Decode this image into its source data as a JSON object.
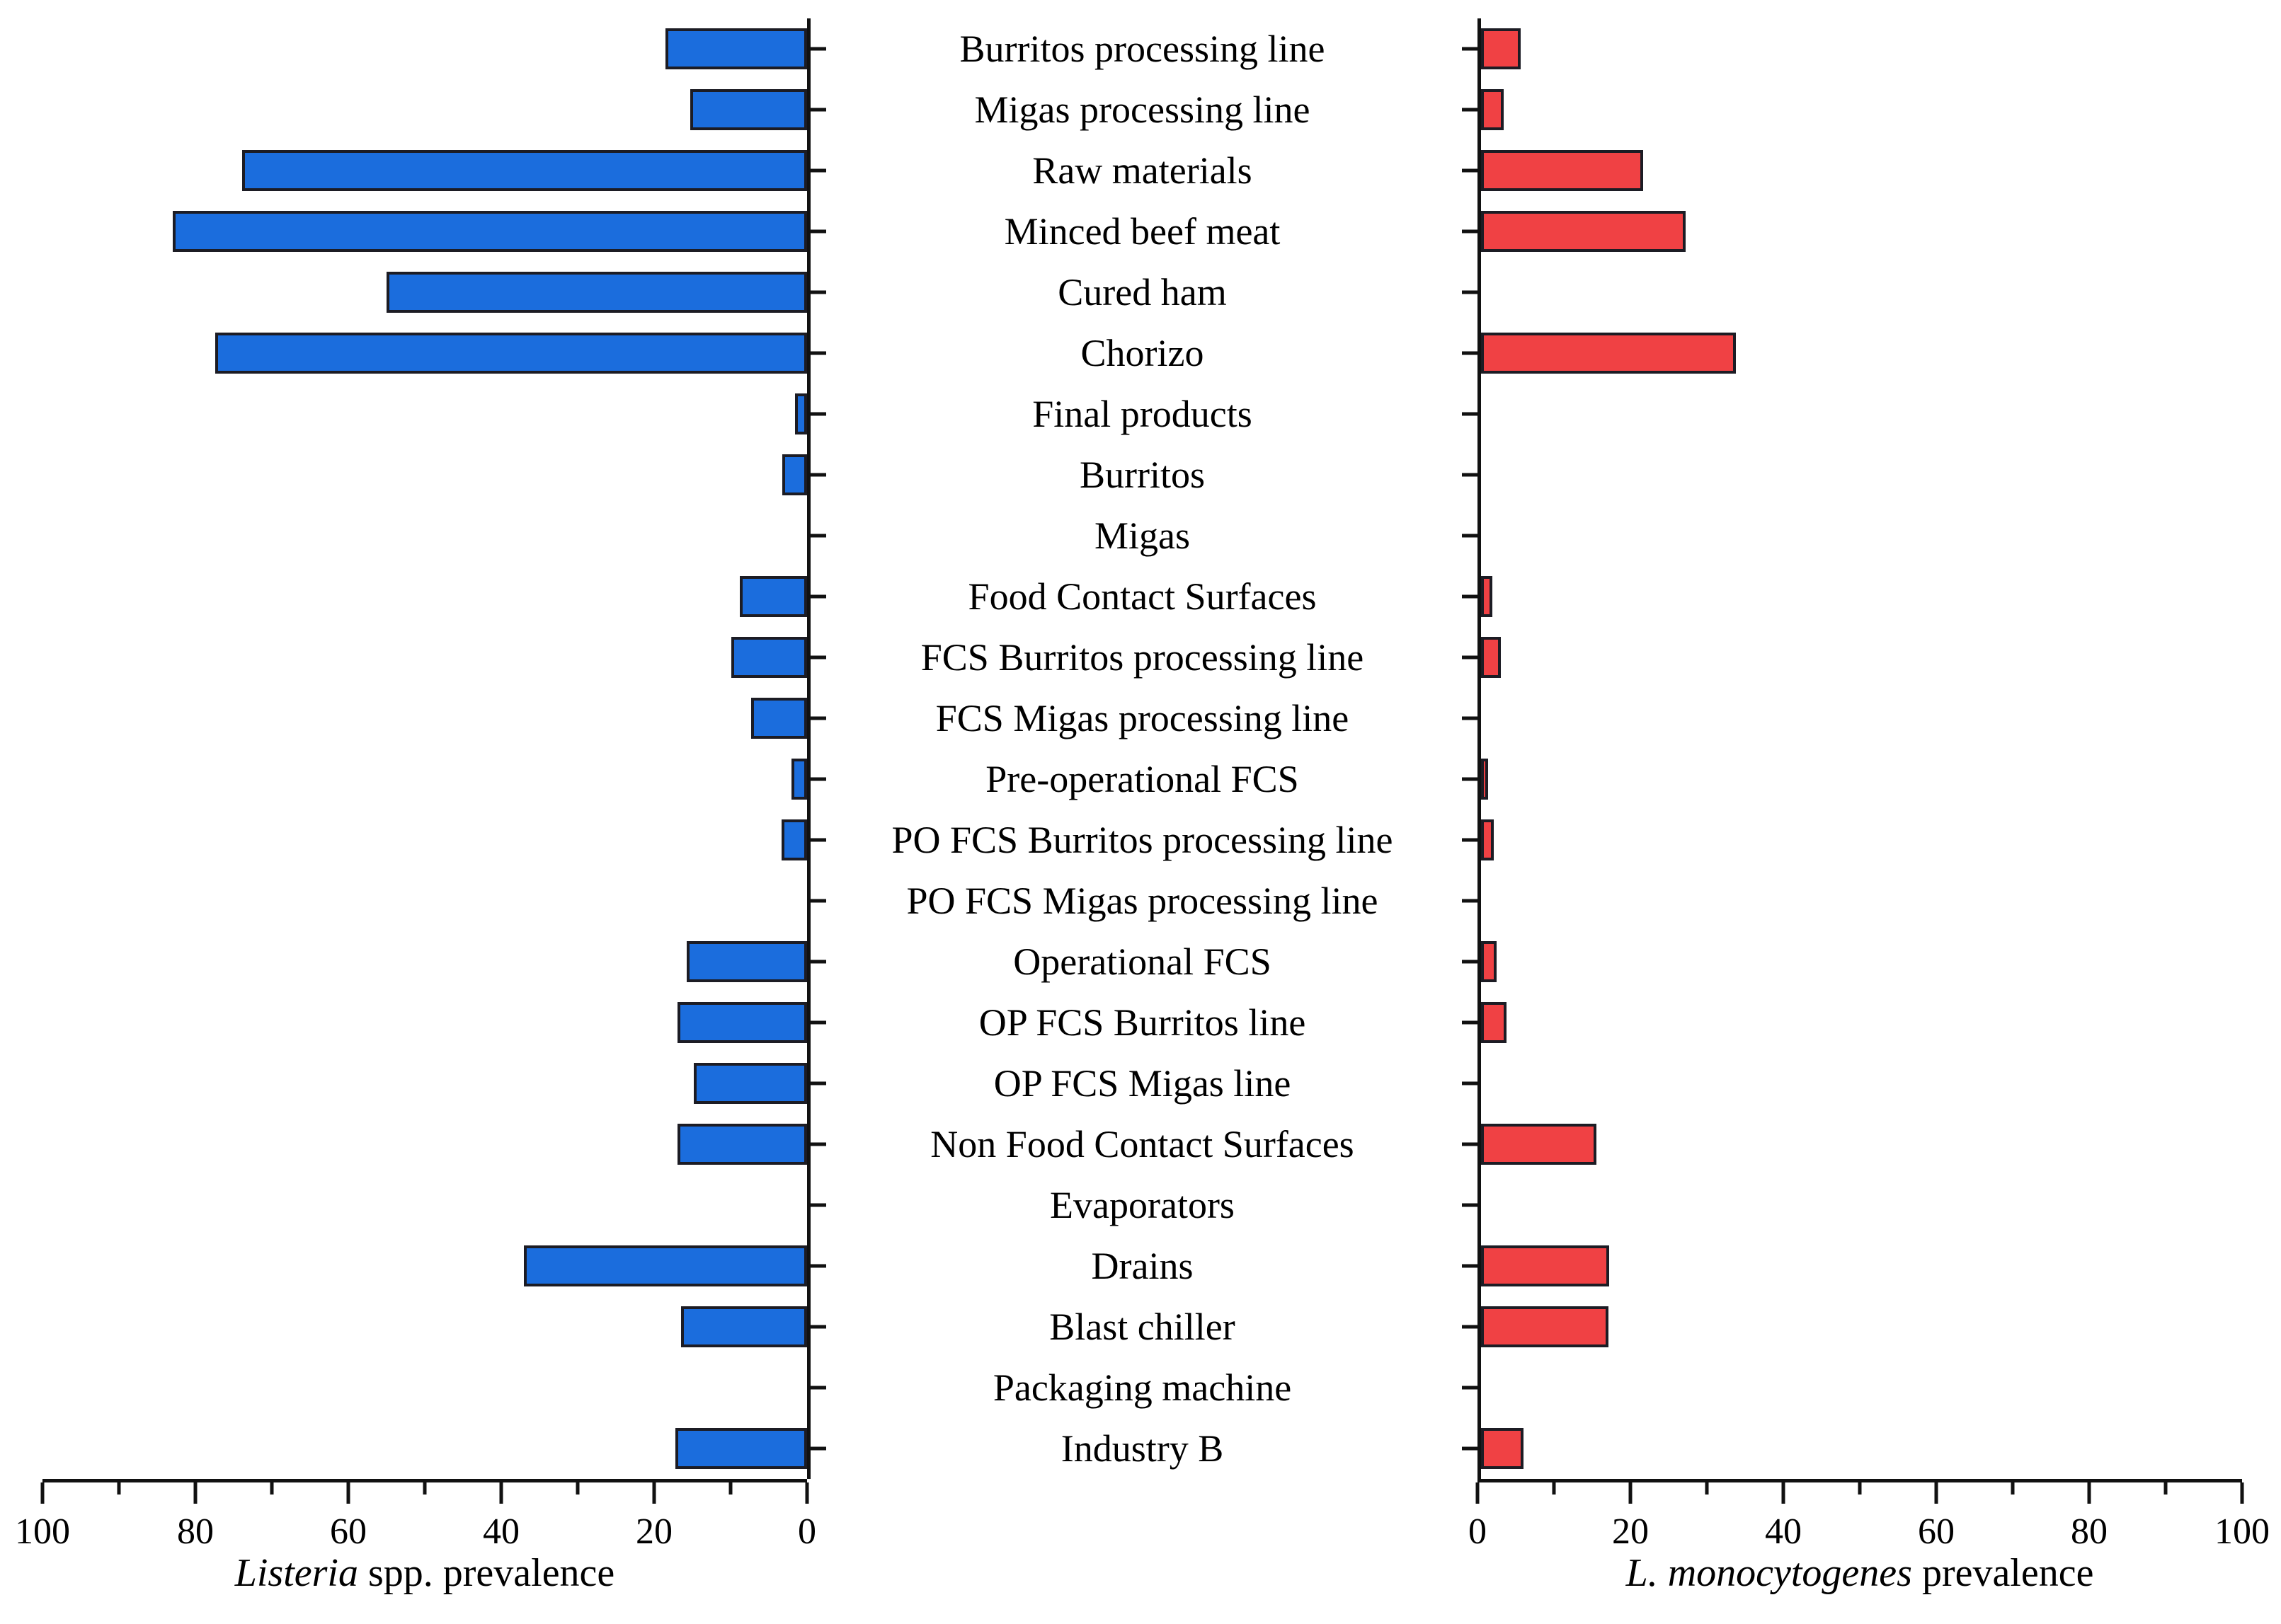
{
  "colors": {
    "blue": "#1b6ddd",
    "red": "#f04144",
    "bar_border": "#1c1c24",
    "axis": "#111111",
    "background": "#ffffff"
  },
  "chart_data": {
    "type": "bar",
    "orientation": "horizontal",
    "layout": "back-to-back tornado chart, shared category labels in center, left axis reversed",
    "grid": false,
    "legend": false,
    "categories": [
      "Burritos processing line",
      "Migas processing line",
      "Raw materials",
      "Minced beef meat",
      "Cured ham",
      "Chorizo",
      "Final products",
      "Burritos",
      "Migas",
      "Food Contact Surfaces",
      "FCS Burritos processing line",
      "FCS Migas processing line",
      "Pre-operational FCS",
      "PO FCS Burritos processing line",
      "PO FCS Migas processing line",
      "Operational FCS",
      "OP FCS Burritos line",
      "OP FCS Migas line",
      "Non Food Contact Surfaces",
      "Evaporators",
      "Drains",
      "Blast chiller",
      "Packaging machine",
      "Industry B"
    ],
    "series": [
      {
        "name": "Listeria spp. prevalence",
        "side": "left",
        "color": "#1b6ddd",
        "values": [
          18.5,
          15.3,
          73.9,
          83.0,
          55.0,
          77.4,
          1.6,
          3.2,
          0,
          8.8,
          9.9,
          7.3,
          2.0,
          3.3,
          0,
          15.7,
          16.9,
          14.8,
          16.9,
          0,
          37.0,
          16.5,
          0,
          17.2
        ]
      },
      {
        "name": "L. monocytogenes prevalence",
        "side": "right",
        "color": "#f04144",
        "values": [
          5.2,
          3.0,
          21.2,
          26.8,
          0,
          33.3,
          0,
          0,
          0,
          1.5,
          2.6,
          0,
          0.9,
          1.7,
          0,
          2.0,
          3.3,
          0,
          15.1,
          0,
          16.8,
          16.7,
          0,
          5.6
        ]
      }
    ],
    "x_axis": {
      "range": [
        0,
        100
      ],
      "major_ticks": [
        0,
        20,
        40,
        60,
        80,
        100
      ],
      "minor_ticks": [
        10,
        30,
        50,
        70,
        90
      ],
      "left_axis_reversed": true
    },
    "left_axis_title": {
      "italic": "Listeria",
      "regular": " spp. prevalence"
    },
    "right_axis_title": {
      "italic": "L. monocytogenes",
      "regular": " prevalence"
    }
  }
}
